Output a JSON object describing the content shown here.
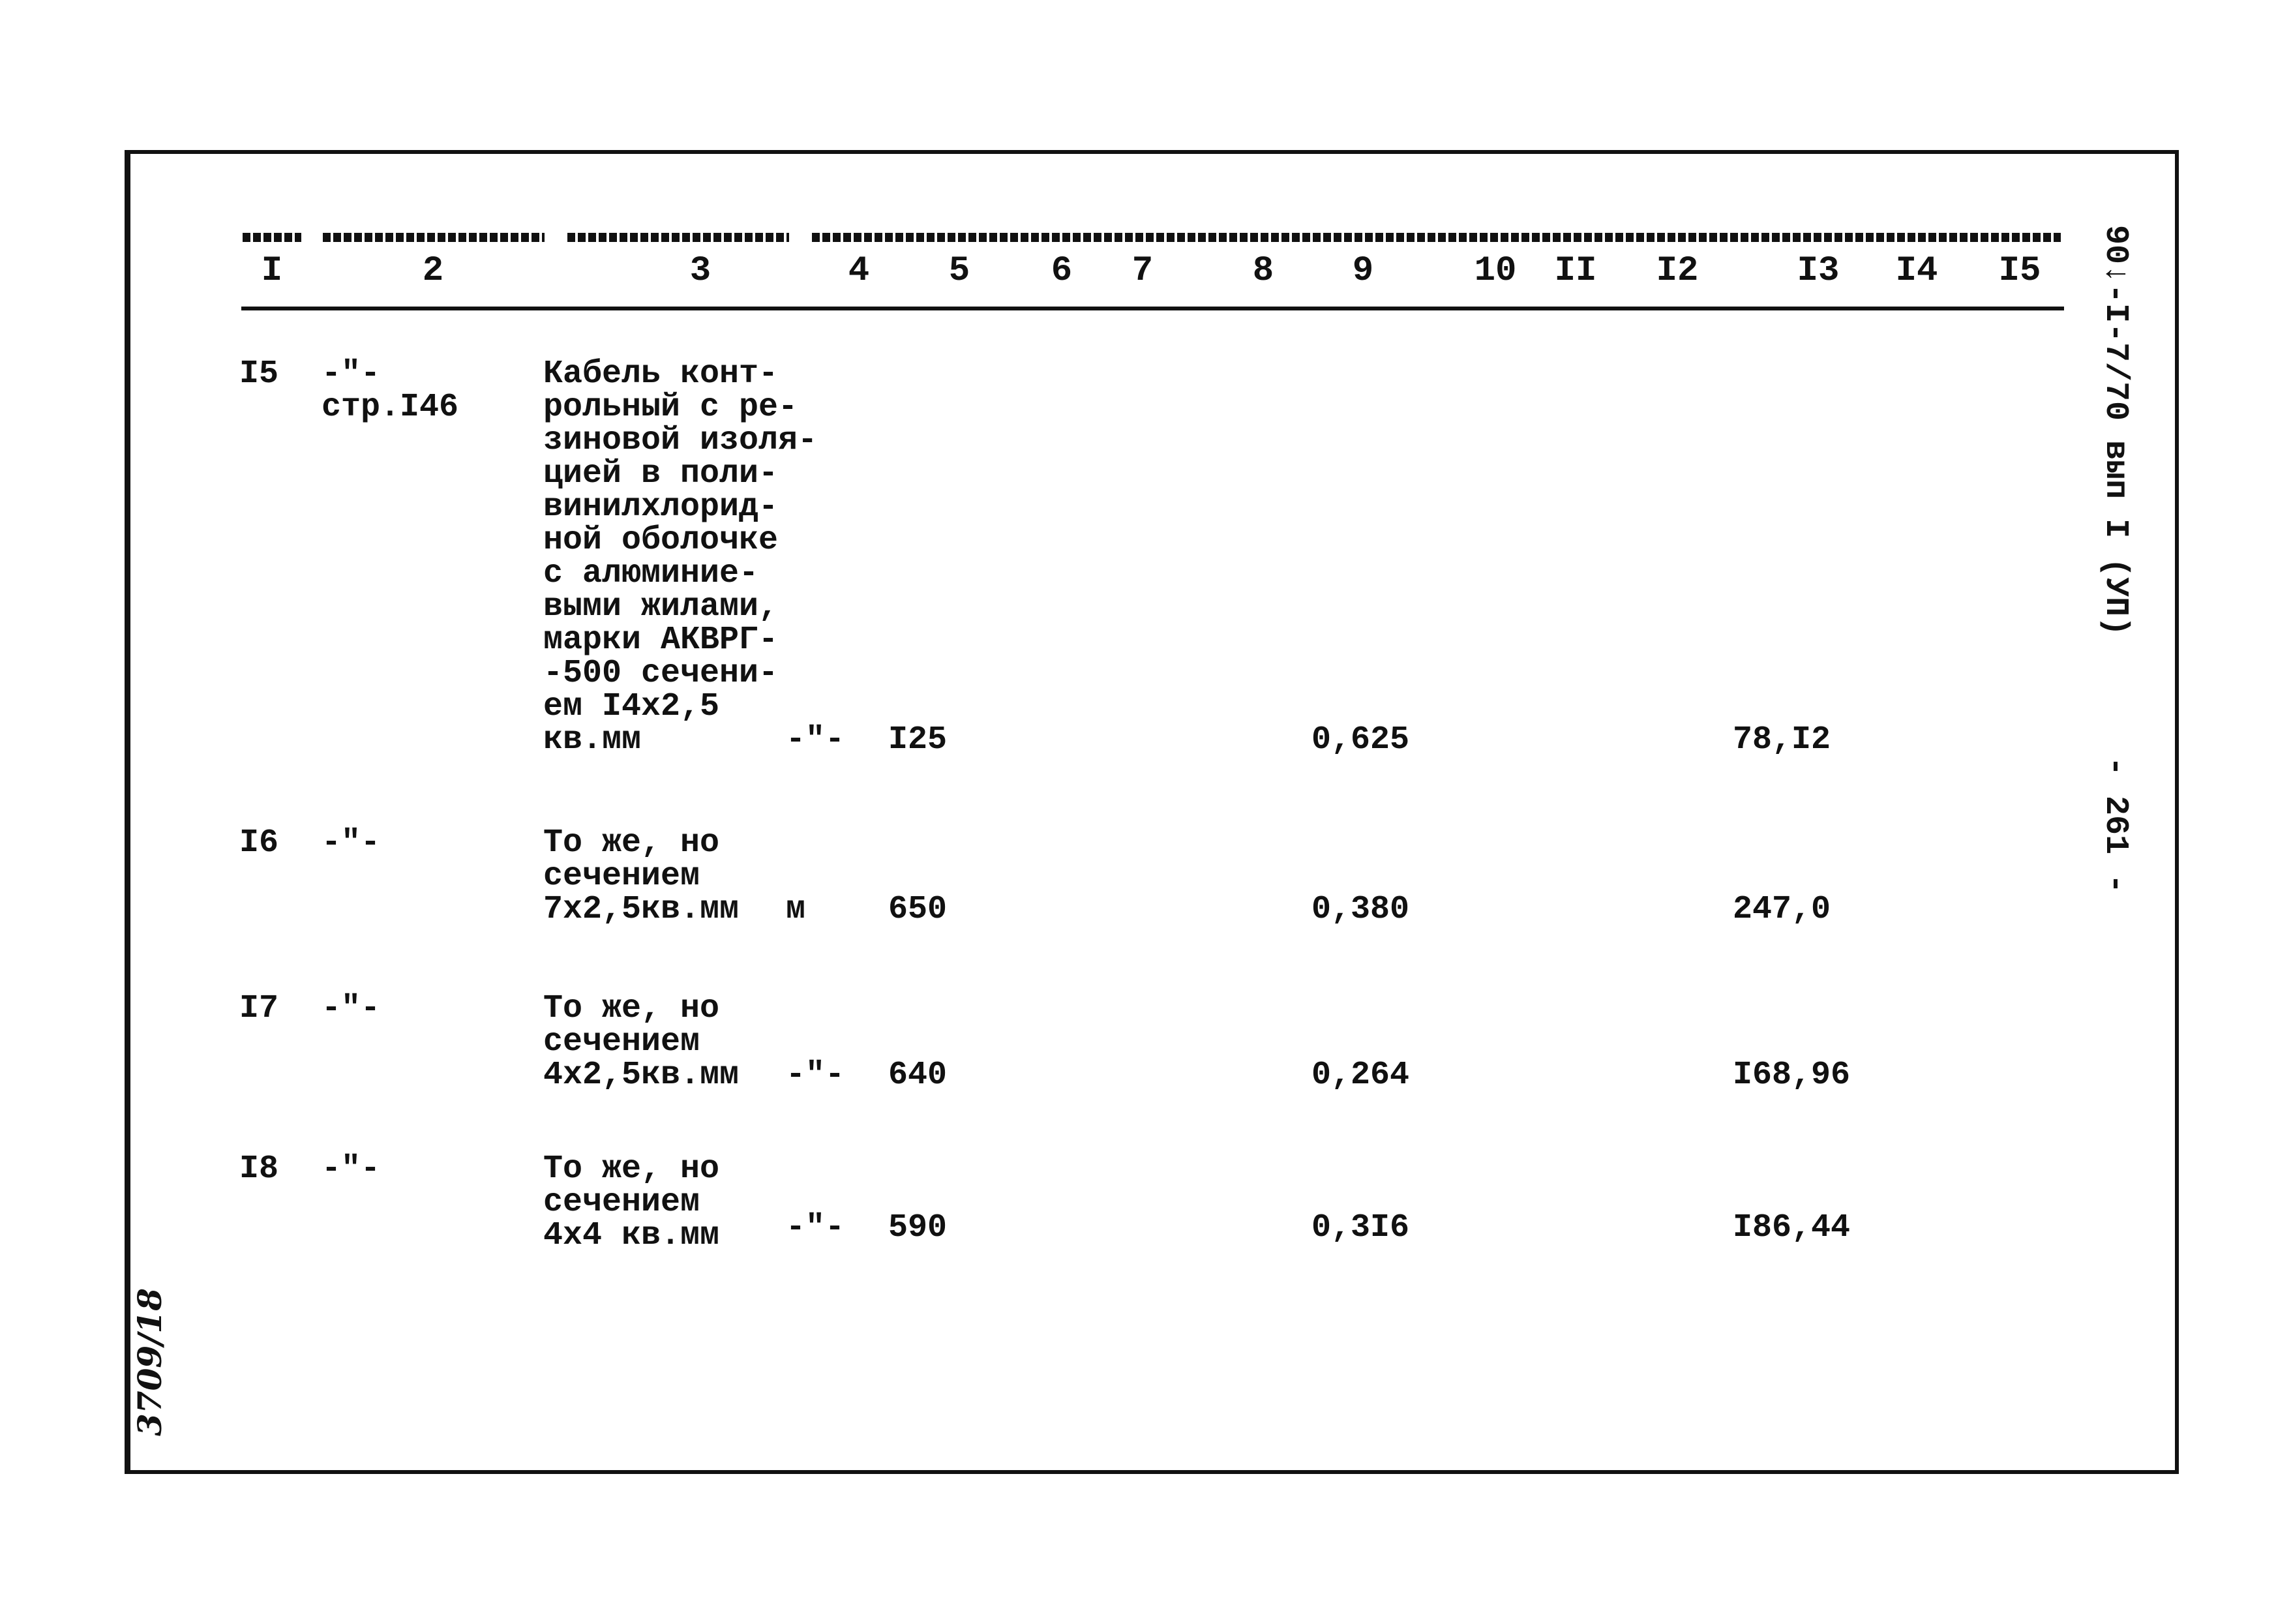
{
  "side_code": "90↓-I-7/70 вып I (УП)",
  "page_number": "- 261 -",
  "stamp": "3709/18",
  "header": [
    "I",
    "2",
    "3",
    "4",
    "5",
    "6",
    "7",
    "8",
    "9",
    "10",
    "II",
    "I2",
    "I3",
    "I4",
    "I5"
  ],
  "rows": [
    {
      "num": "I5",
      "ref": "-\"-\nстр.I46",
      "desc": "Кабель конт-\nрольный с ре-\nзиновой изоля-\nцией в поли-\nвинилхлорид-\nной оболочке\nс алюминие-\nвыми жилами,\nмарки АКВРГ-\n-500 сечени-\nем I4х2,5\nкв.мм",
      "unit": "-\"-",
      "qty": "I25",
      "c9": "0,625",
      "c13": "78,I2"
    },
    {
      "num": "I6",
      "ref": "-\"-",
      "desc": "То же, но\nсечением\n7х2,5кв.мм",
      "unit": "м",
      "qty": "650",
      "c9": "0,380",
      "c13": "247,0"
    },
    {
      "num": "I7",
      "ref": "-\"-",
      "desc": "То же, но\nсечением\n4х2,5кв.мм",
      "unit": "-\"-",
      "qty": "640",
      "c9": "0,264",
      "c13": "I68,96"
    },
    {
      "num": "I8",
      "ref": "-\"-",
      "desc": "То же, но\nсечением\n4х4 кв.мм",
      "unit": "-\"-",
      "qty": "590",
      "c9": "0,3I6",
      "c13": "I86,44"
    }
  ]
}
